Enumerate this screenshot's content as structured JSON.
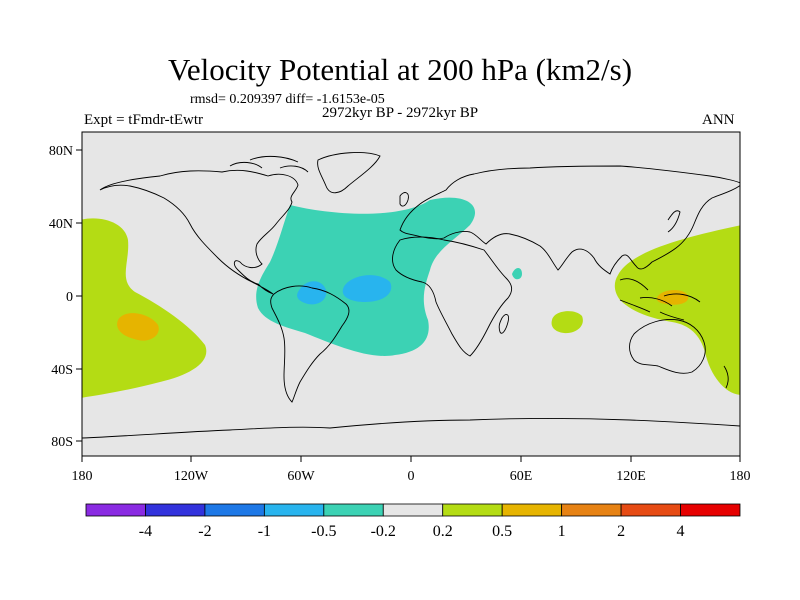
{
  "title": "Velocity Potential at 200 hPa (km2/s)",
  "stats": "rmsd= 0.209397 diff= -1.6153e-05",
  "expt": "Expt = tFmdr-tEwtr",
  "period": "2972kyr BP - 2972kyr BP",
  "season": "ANN",
  "y_axis_labels": [
    "80N",
    "40N",
    "0",
    "40S",
    "80S"
  ],
  "x_axis_labels": [
    "180",
    "120W",
    "60W",
    "0",
    "60E",
    "120E",
    "180"
  ],
  "colorbar": {
    "colors": [
      "#8a2be2",
      "#3232dc",
      "#1e78e6",
      "#28b4ee",
      "#3cd2b4",
      "#e6e6e6",
      "#b4dc14",
      "#e6b400",
      "#e68214",
      "#e64b14",
      "#e60000"
    ],
    "labels": [
      "-4",
      "-2",
      "-1",
      "-0.5",
      "-0.2",
      "0.2",
      "0.5",
      "1",
      "2",
      "4"
    ]
  },
  "map_colors": {
    "background": "#e6e6e6",
    "neg_0_2": "#3cd2b4",
    "neg_0_5": "#28b4ee",
    "pos_0_2": "#b4dc14",
    "pos_0_5": "#e6b400"
  }
}
